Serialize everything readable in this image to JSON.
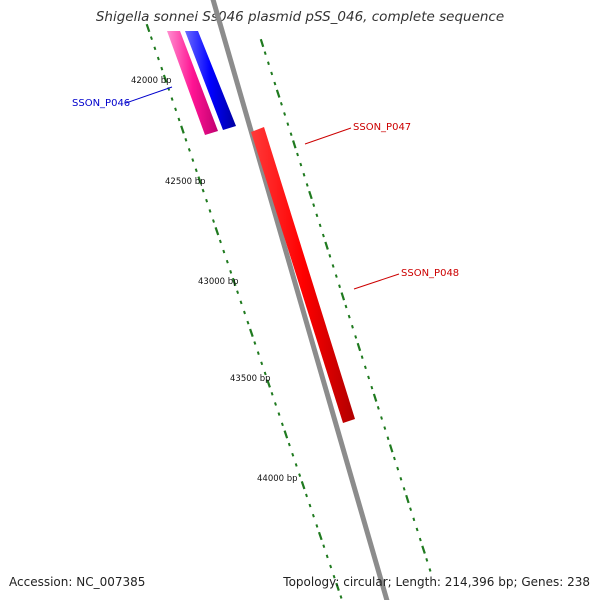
{
  "title": "Shigella sonnei Ss046 plasmid pSS_046, complete sequence",
  "accession": "Accession: NC_007385",
  "summary": "Topology: circular; Length: 214,396 bp; Genes: 238",
  "colors": {
    "backbone": "#8c8c8c",
    "ticks": "#1f7a1f",
    "gene_forward": "#ff0000",
    "gene_pink": "#ff1493",
    "gene_blue": "#0000ff"
  },
  "scale_labels": [
    {
      "text": "42000 bp",
      "bp": 42000
    },
    {
      "text": "42500 bp",
      "bp": 42500
    },
    {
      "text": "43000 bp",
      "bp": 43000
    },
    {
      "text": "43500 bp",
      "bp": 43500
    },
    {
      "text": "44000 bp",
      "bp": 44000
    }
  ],
  "genes": [
    {
      "label": "SSON_P046",
      "color": "#0000ff"
    },
    {
      "label": "SSON_P047",
      "color": "#ff0000"
    },
    {
      "label": "SSON_P048",
      "color": "#ff0000"
    }
  ]
}
